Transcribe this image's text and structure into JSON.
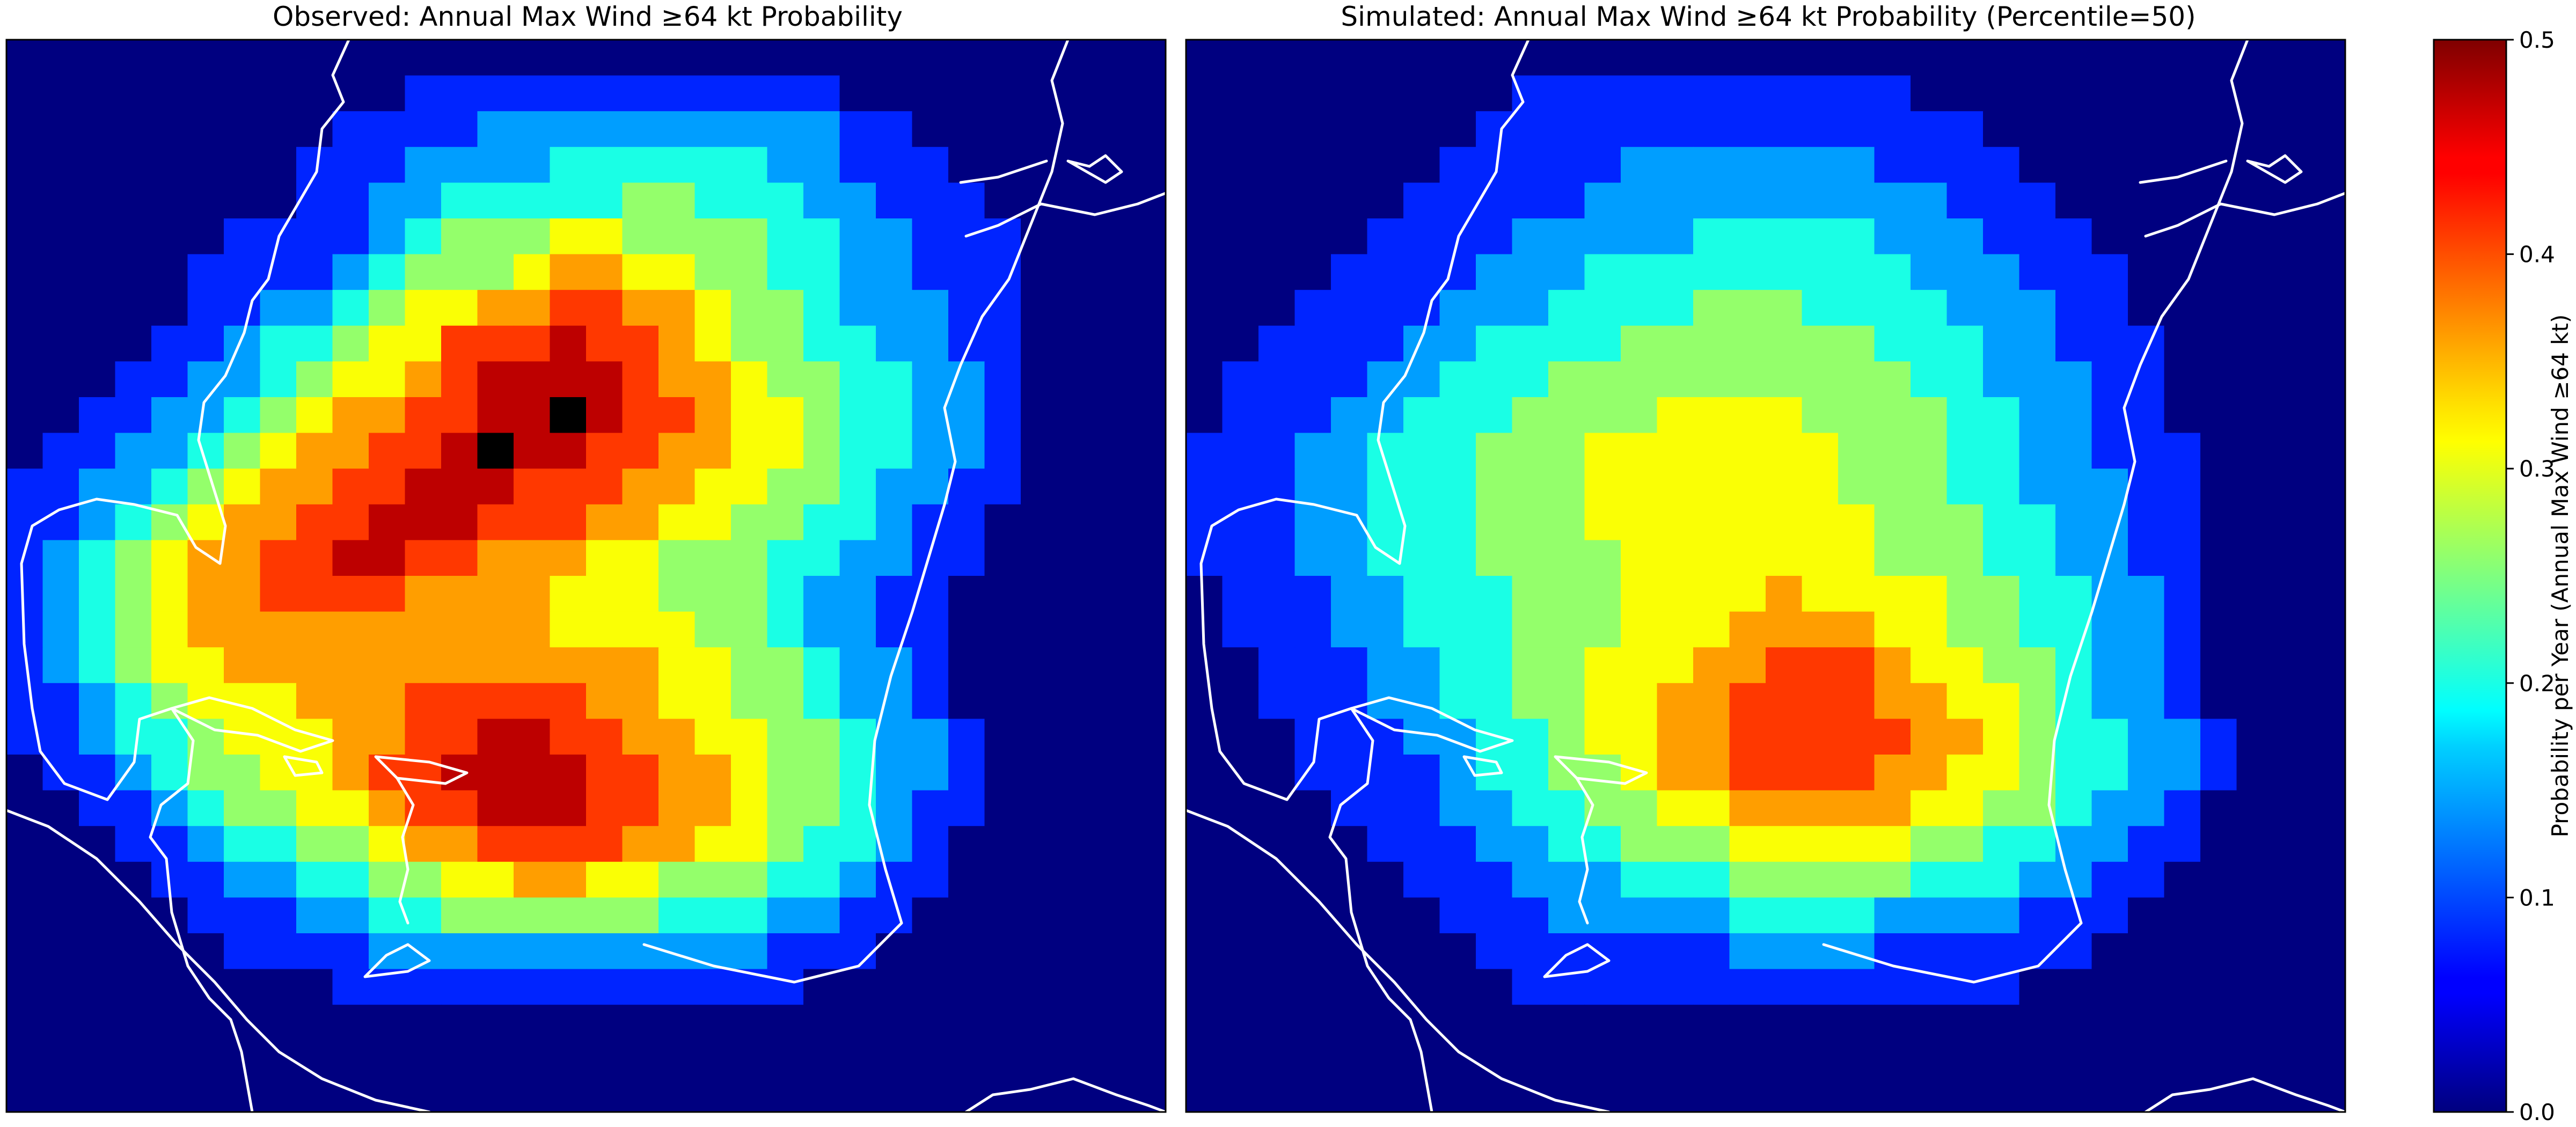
{
  "chart_data": {
    "type": "heatmap",
    "colormap": "jet",
    "grid": {
      "cols": 32,
      "rows": 30
    },
    "panels": [
      {
        "title": "Observed: Annual Max Wind ≥64 kt Probability",
        "rows": [
          "00000000000000000000000000000000",
          "00000000000111111111111000000000",
          "00000000011112222222222110000000",
          "00000000111222233333322111000000",
          "00000000112233333443332211100000",
          "00000011112344455444433221110000",
          "00000111123444566554433221110000",
          "00000112234556677665443222110000",
          "00001123345577787765443322110000",
          "00011223455678888766544332210000",
          "00112234566778898776554332210000",
          "01122345667789887766554332210000",
          "11223456677888777665544322110000",
          "11234566778887776655443321100000",
          "12345667788776665544433221100000",
          "12345667777666655544432211000000",
          "12345666666666655554432211000000",
          "12345566666666666655443221000000",
          "11234555666777776655443221000000",
          "11233455566778877665544322100000",
          "01123445567788887766544322100000",
          "00112344556778887766544321100000",
          "00011233445667777665543321000000",
          "00001122334455665544433211000000",
          "00000111223344444433322110000000",
          "00000011112222222222211100000000",
          "00000000011111111111110000000000",
          "00000000000000000000000000000000",
          "00000000000000000000000000000000",
          "00000000000000000000000000000000"
        ]
      },
      {
        "title": "Simulated: Annual Max Wind ≥64 kt Probability (Percentile=50)",
        "rows": [
          "00000000000000000000000000000000",
          "00000000011111111111000000000000",
          "00000000111111111111110000000000",
          "00000001111122222221111000000000",
          "00000011111222222222211100000000",
          "00000111122222333332221110000000",
          "00001111222333333333222111000000",
          "00011112223333444333322211000000",
          "00111122333344444443332211100000",
          "01111223334444444444332221100000",
          "01112233344445555444433221100000",
          "11122333444555555544433221110000",
          "11122333444555555544433222110000",
          "11122333444555555554443322110000",
          "11122333444455555554443322110000",
          "01112233344455556555544332210000",
          "01112233344455566665544332210000",
          "00111223344555667776554432210000",
          "00111223344556677776655432210000",
          "00011122334556677777665433221000",
          "00011112334456677776655433221000",
          "00001112233445566666554432210000",
          "00000111223344455555443322110000",
          "00000011122233344444333221100000",
          "00000001112222233332222111000000",
          "00000000111111122221111110000000",
          "00000000011111111111111000000000",
          "00000000000000000000000000000000",
          "00000000000000000000000000000000",
          "00000000000000000000000000000000"
        ]
      }
    ],
    "colorbar": {
      "label": "Probability per Year (Annual Max Wind ≥64 kt)",
      "range": [
        0.0,
        0.5
      ],
      "ticks": [
        "0.0",
        "0.1",
        "0.2",
        "0.3",
        "0.4",
        "0.5"
      ],
      "levels": [
        0.0,
        0.08,
        0.14,
        0.2,
        0.26,
        0.31,
        0.36,
        0.41,
        0.47
      ]
    },
    "grid_lines": false,
    "legend": "right colorbar",
    "overlay": "white coastlines"
  }
}
